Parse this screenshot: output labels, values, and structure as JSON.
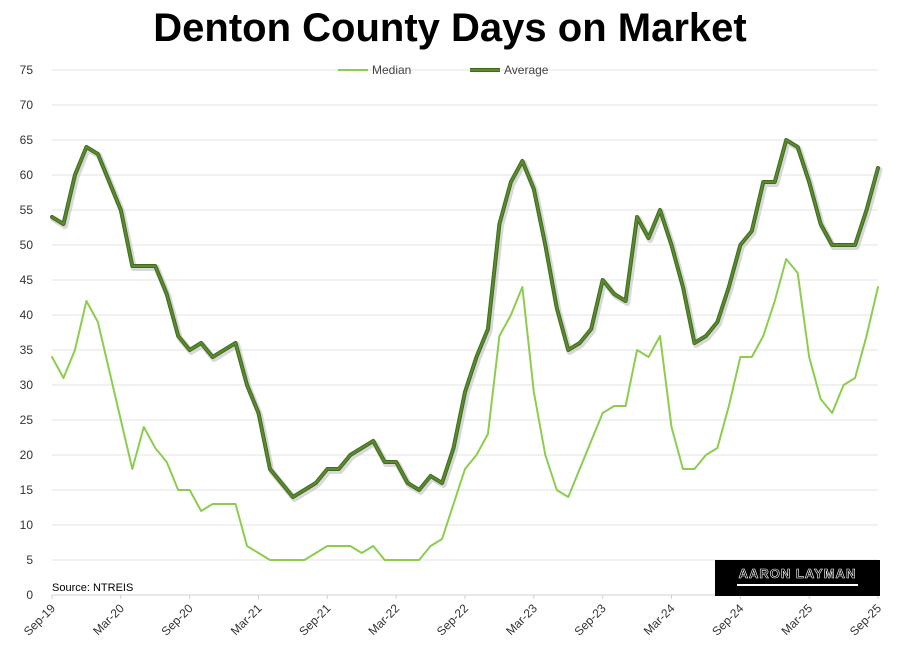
{
  "chart_data": {
    "type": "line",
    "title": "Denton County Days on Market",
    "xlabel": "",
    "ylabel": "",
    "ylim": [
      0,
      75
    ],
    "yticks": [
      "0",
      "5",
      "10",
      "15",
      "20",
      "25",
      "30",
      "35",
      "40",
      "45",
      "50",
      "55",
      "60",
      "65",
      "70",
      "75"
    ],
    "grid": true,
    "legend_position": "top-center",
    "source": "Source: NTREIS",
    "x_start": "Sep-19",
    "x_tick_labels": [
      {
        "index": 0,
        "label": "Sep-19"
      },
      {
        "index": 6,
        "label": "Mar-20"
      },
      {
        "index": 12,
        "label": "Sep-20"
      },
      {
        "index": 18,
        "label": "Mar-21"
      },
      {
        "index": 24,
        "label": "Sep-21"
      },
      {
        "index": 30,
        "label": "Mar-22"
      },
      {
        "index": 36,
        "label": "Sep-22"
      },
      {
        "index": 42,
        "label": "Mar-23"
      },
      {
        "index": 48,
        "label": "Sep-23"
      },
      {
        "index": 54,
        "label": "Mar-24"
      },
      {
        "index": 60,
        "label": "Sep-24"
      },
      {
        "index": 66,
        "label": "Mar-25"
      },
      {
        "index": 72,
        "label": "Sep-25"
      }
    ],
    "series": [
      {
        "name": "Median",
        "color": "#8ccd4f",
        "values": [
          34,
          31,
          35,
          42,
          39,
          32,
          25,
          18,
          24,
          21,
          19,
          15,
          15,
          12,
          13,
          13,
          13,
          7,
          6,
          5,
          5,
          5,
          5,
          6,
          7,
          7,
          7,
          6,
          7,
          5,
          5,
          5,
          5,
          7,
          8,
          13,
          18,
          20,
          23,
          37,
          40,
          44,
          29,
          20,
          15,
          14,
          18,
          22,
          26,
          27,
          27,
          35,
          34,
          37,
          24,
          18,
          18,
          20,
          21,
          27,
          34,
          34,
          37,
          42,
          48,
          46,
          34,
          28,
          26,
          30,
          31,
          37,
          44
        ]
      },
      {
        "name": "Average",
        "color": "#5b8a2f",
        "values": [
          54,
          53,
          60,
          64,
          63,
          59,
          55,
          47,
          47,
          47,
          43,
          37,
          35,
          36,
          34,
          35,
          36,
          30,
          26,
          18,
          16,
          14,
          15,
          16,
          18,
          18,
          20,
          21,
          22,
          19,
          19,
          16,
          15,
          17,
          16,
          21,
          29,
          34,
          38,
          53,
          59,
          62,
          58,
          50,
          41,
          35,
          36,
          38,
          45,
          43,
          42,
          54,
          51,
          55,
          50,
          44,
          36,
          37,
          39,
          44,
          50,
          52,
          59,
          59,
          65,
          64,
          59,
          53,
          50,
          50,
          50,
          55,
          61
        ]
      }
    ]
  },
  "logo": {
    "text": "AARON LAYMAN"
  }
}
